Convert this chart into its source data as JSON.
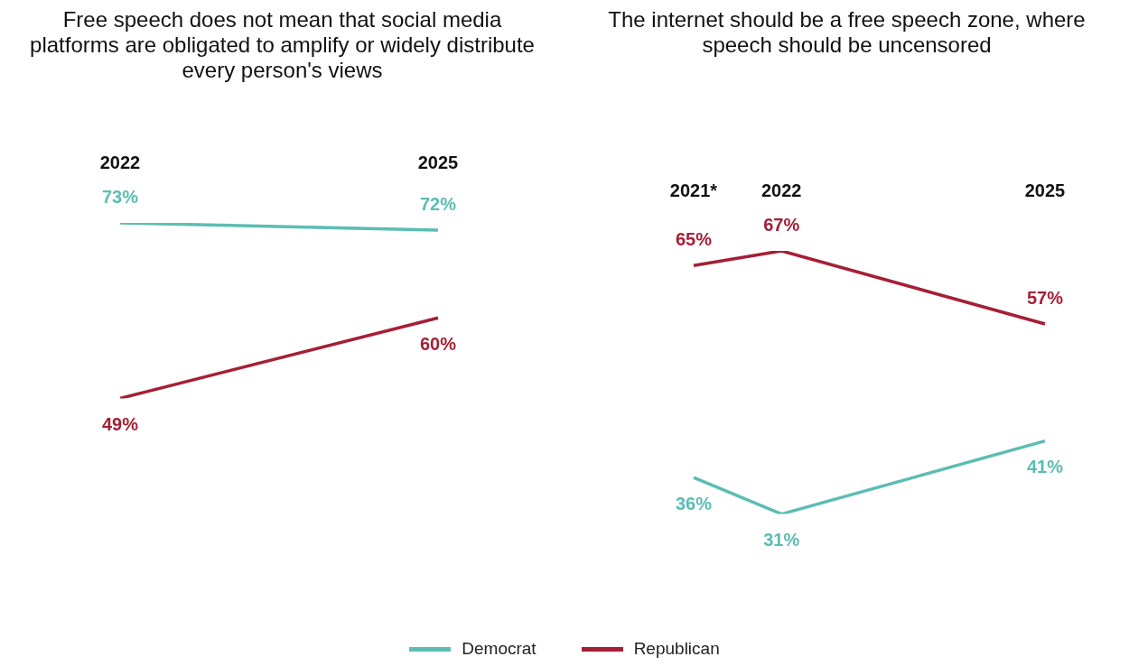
{
  "chart_data": [
    {
      "type": "line",
      "title": "Free speech does not mean that social media platforms are obligated to amplify or widely distribute every person's views",
      "categories": [
        "2022",
        "2025"
      ],
      "tick_labels": "x",
      "legend": "bottom",
      "series": [
        {
          "name": "Democrat",
          "color": "#5bbdb3",
          "values": [
            73,
            72
          ],
          "value_labels": [
            "73%",
            "72%"
          ]
        },
        {
          "name": "Republican",
          "color": "#a51f35",
          "values": [
            49,
            60
          ],
          "value_labels": [
            "49%",
            "60%"
          ]
        }
      ]
    },
    {
      "type": "line",
      "title": "The internet should be a free speech zone, where speech should be uncensored",
      "categories": [
        "2021*",
        "2022",
        null,
        null,
        "2025"
      ],
      "tick_labels": "x",
      "legend": "bottom",
      "series": [
        {
          "name": "Democrat",
          "color": "#5bbdb3",
          "values": [
            36,
            31,
            null,
            null,
            41
          ],
          "value_labels": [
            "36%",
            "31%",
            null,
            null,
            "41%"
          ]
        },
        {
          "name": "Republican",
          "color": "#a51f35",
          "values": [
            65,
            67,
            null,
            null,
            57
          ],
          "value_labels": [
            "65%",
            "67%",
            null,
            null,
            "57%"
          ]
        }
      ]
    }
  ]
}
